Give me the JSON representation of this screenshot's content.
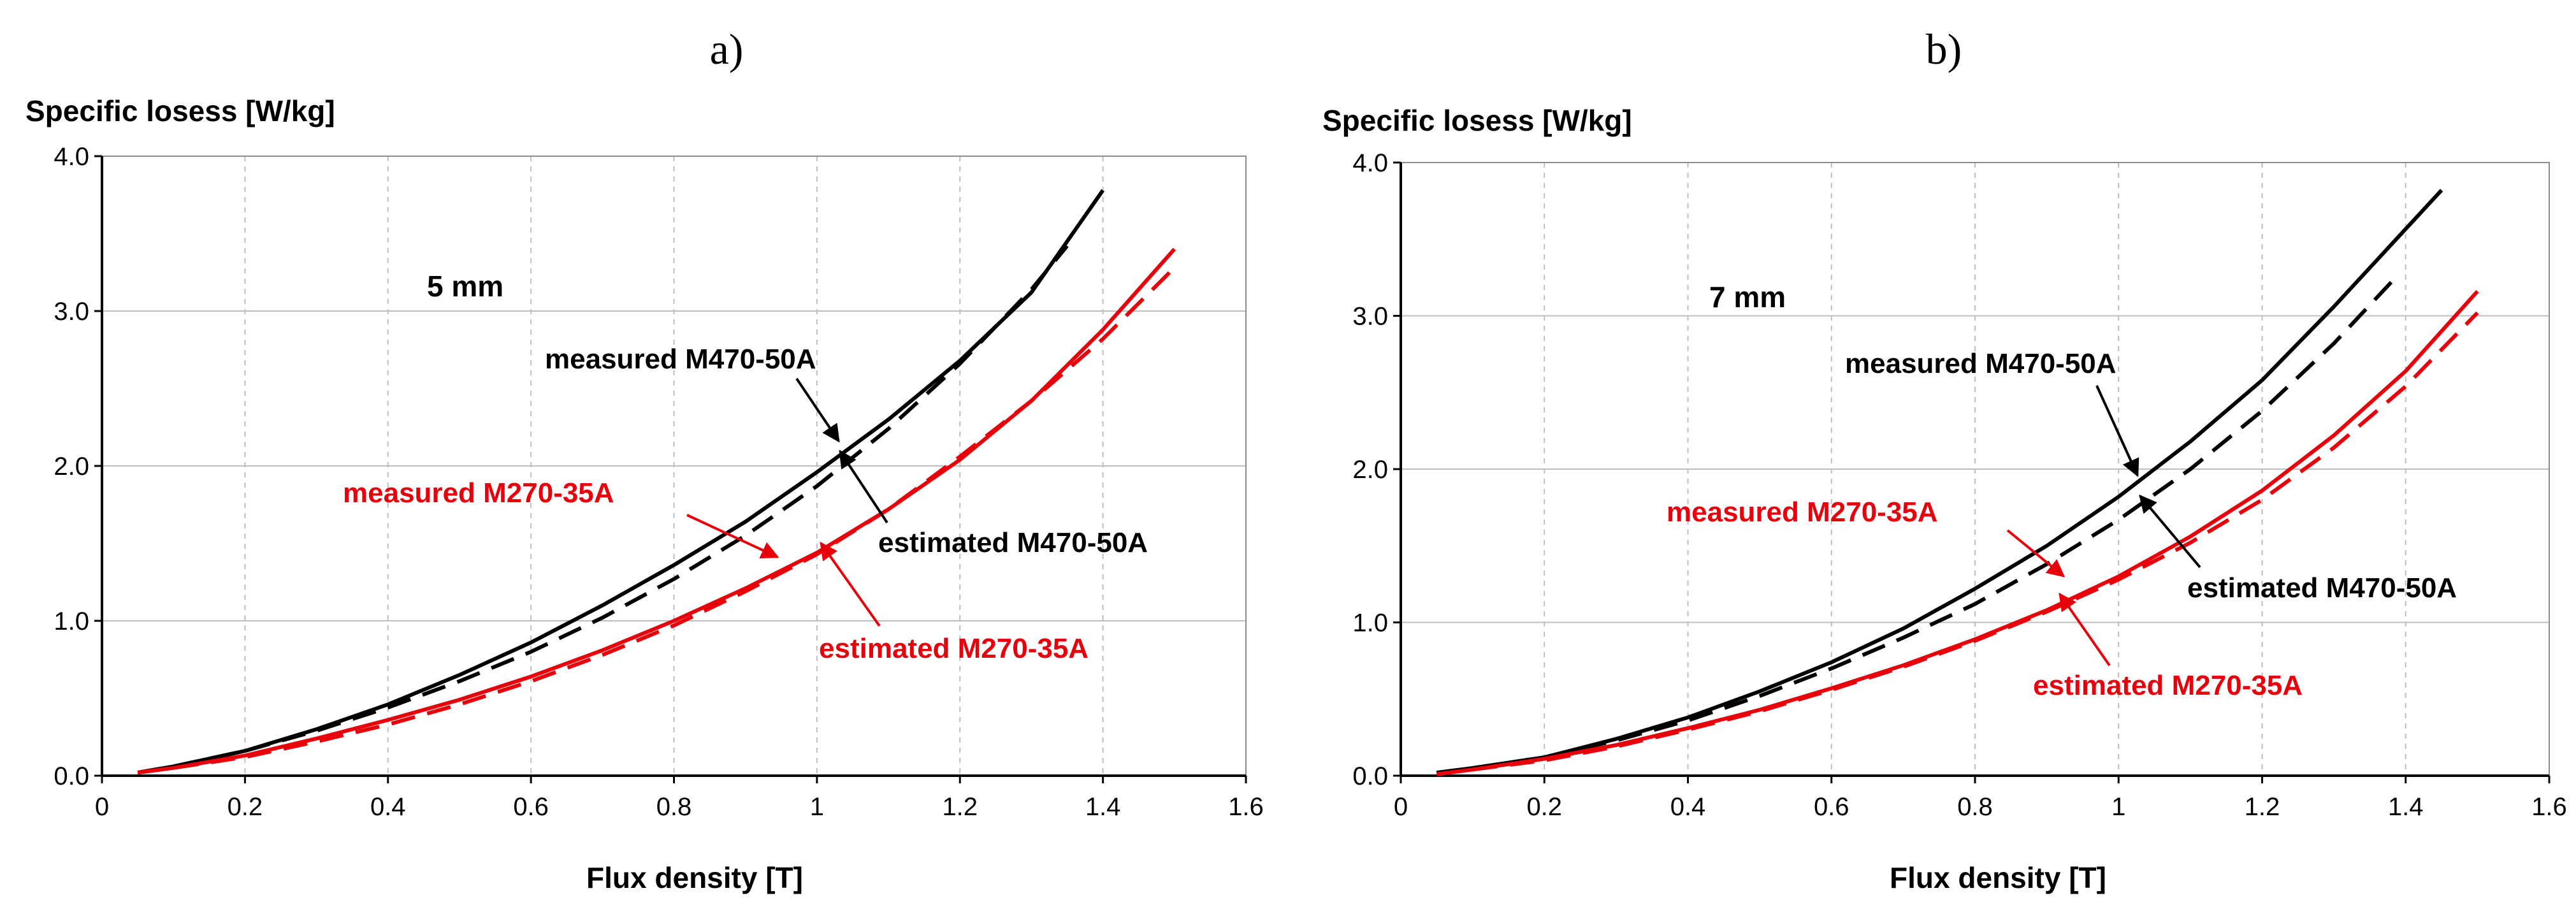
{
  "chart_data": [
    {
      "type": "line",
      "panel_title": "a)",
      "ylabel": "Specific losess [W/kg]",
      "xlabel": "Flux density [T]",
      "xlim": [
        0,
        1.6
      ],
      "ylim": [
        0,
        4.0
      ],
      "xticks": [
        0,
        0.2,
        0.4,
        0.6,
        0.8,
        1,
        1.2,
        1.4,
        1.6
      ],
      "xtick_labels": [
        "0",
        "0.2",
        "0.4",
        "0.6",
        "0.8",
        "1",
        "1.2",
        "1.4",
        "1.6"
      ],
      "yticks": [
        0,
        1,
        2,
        3,
        4
      ],
      "ytick_labels": [
        "0.0",
        "1.0",
        "2.0",
        "3.0",
        "4.0"
      ],
      "grid": "vertical dashed + horizontal solid",
      "thickness_label": "5 mm",
      "series": [
        {
          "name": "measured M470-50A",
          "color": "#000000",
          "dash": "solid",
          "x": [
            0.05,
            0.1,
            0.2,
            0.3,
            0.4,
            0.5,
            0.6,
            0.7,
            0.8,
            0.9,
            1.0,
            1.1,
            1.2,
            1.3,
            1.4
          ],
          "y": [
            0.02,
            0.06,
            0.16,
            0.3,
            0.46,
            0.65,
            0.86,
            1.1,
            1.36,
            1.64,
            1.96,
            2.3,
            2.68,
            3.12,
            3.78
          ]
        },
        {
          "name": "estimated M470-50A",
          "color": "#000000",
          "dash": "dashed",
          "x": [
            0.05,
            0.1,
            0.2,
            0.3,
            0.4,
            0.5,
            0.6,
            0.7,
            0.8,
            0.9,
            1.0,
            1.1,
            1.2,
            1.3,
            1.35
          ],
          "y": [
            0.02,
            0.06,
            0.16,
            0.29,
            0.44,
            0.61,
            0.8,
            1.02,
            1.27,
            1.55,
            1.87,
            2.24,
            2.66,
            3.14,
            3.42
          ]
        },
        {
          "name": "measured M270-35A",
          "color": "#e8000b",
          "dash": "solid",
          "x": [
            0.05,
            0.1,
            0.2,
            0.3,
            0.4,
            0.5,
            0.6,
            0.7,
            0.8,
            0.9,
            1.0,
            1.1,
            1.2,
            1.3,
            1.4,
            1.5
          ],
          "y": [
            0.02,
            0.05,
            0.13,
            0.24,
            0.36,
            0.49,
            0.64,
            0.81,
            1.0,
            1.21,
            1.44,
            1.72,
            2.04,
            2.42,
            2.88,
            3.4
          ]
        },
        {
          "name": "estimated M270-35A",
          "color": "#e8000b",
          "dash": "dashed",
          "x": [
            0.05,
            0.1,
            0.2,
            0.3,
            0.4,
            0.5,
            0.6,
            0.7,
            0.8,
            0.9,
            1.0,
            1.1,
            1.2,
            1.3,
            1.4,
            1.5
          ],
          "y": [
            0.02,
            0.05,
            0.12,
            0.22,
            0.33,
            0.46,
            0.61,
            0.78,
            0.97,
            1.19,
            1.43,
            1.72,
            2.06,
            2.42,
            2.82,
            3.28
          ]
        }
      ],
      "annotations": [
        {
          "text": "measured M470-50A",
          "color": "#000000"
        },
        {
          "text": "estimated M470-50A",
          "color": "#000000"
        },
        {
          "text": "measured M270-35A",
          "color": "#e8000b"
        },
        {
          "text": "estimated M270-35A",
          "color": "#e8000b"
        }
      ]
    },
    {
      "type": "line",
      "panel_title": "b)",
      "ylabel": "Specific losess [W/kg]",
      "xlabel": "Flux density [T]",
      "xlim": [
        0,
        1.6
      ],
      "ylim": [
        0,
        4.0
      ],
      "xticks": [
        0,
        0.2,
        0.4,
        0.6,
        0.8,
        1,
        1.2,
        1.4,
        1.6
      ],
      "xtick_labels": [
        "0",
        "0.2",
        "0.4",
        "0.6",
        "0.8",
        "1",
        "1.2",
        "1.4",
        "1.6"
      ],
      "yticks": [
        0,
        1,
        2,
        3,
        4
      ],
      "ytick_labels": [
        "0.0",
        "1.0",
        "2.0",
        "3.0",
        "4.0"
      ],
      "grid": "vertical dashed + horizontal solid",
      "thickness_label": "7 mm",
      "series": [
        {
          "name": "measured M470-50A",
          "color": "#000000",
          "dash": "solid",
          "x": [
            0.05,
            0.1,
            0.2,
            0.3,
            0.4,
            0.5,
            0.6,
            0.7,
            0.8,
            0.9,
            1.0,
            1.1,
            1.2,
            1.3,
            1.45
          ],
          "y": [
            0.02,
            0.05,
            0.12,
            0.24,
            0.38,
            0.55,
            0.74,
            0.96,
            1.22,
            1.5,
            1.82,
            2.18,
            2.58,
            3.06,
            3.82
          ]
        },
        {
          "name": "estimated M470-50A",
          "color": "#000000",
          "dash": "dashed",
          "x": [
            0.05,
            0.1,
            0.2,
            0.3,
            0.4,
            0.5,
            0.6,
            0.7,
            0.8,
            0.9,
            1.0,
            1.1,
            1.2,
            1.3,
            1.38
          ],
          "y": [
            0.02,
            0.05,
            0.12,
            0.23,
            0.36,
            0.52,
            0.7,
            0.9,
            1.12,
            1.38,
            1.67,
            2.0,
            2.38,
            2.82,
            3.22
          ]
        },
        {
          "name": "measured M270-35A",
          "color": "#e8000b",
          "dash": "solid",
          "x": [
            0.05,
            0.1,
            0.2,
            0.3,
            0.4,
            0.5,
            0.6,
            0.7,
            0.8,
            0.9,
            1.0,
            1.1,
            1.2,
            1.3,
            1.4,
            1.5
          ],
          "y": [
            0.01,
            0.04,
            0.11,
            0.2,
            0.31,
            0.43,
            0.57,
            0.72,
            0.89,
            1.08,
            1.3,
            1.56,
            1.86,
            2.22,
            2.64,
            3.16
          ]
        },
        {
          "name": "estimated M270-35A",
          "color": "#e8000b",
          "dash": "dashed",
          "x": [
            0.05,
            0.1,
            0.2,
            0.3,
            0.4,
            0.5,
            0.6,
            0.7,
            0.8,
            0.9,
            1.0,
            1.1,
            1.2,
            1.3,
            1.4,
            1.5
          ],
          "y": [
            0.01,
            0.04,
            0.1,
            0.19,
            0.3,
            0.42,
            0.56,
            0.71,
            0.88,
            1.07,
            1.28,
            1.52,
            1.8,
            2.14,
            2.54,
            3.02
          ]
        }
      ],
      "annotations": [
        {
          "text": "measured M470-50A",
          "color": "#000000"
        },
        {
          "text": "estimated M470-50A",
          "color": "#000000"
        },
        {
          "text": "measured M270-35A",
          "color": "#e8000b"
        },
        {
          "text": "estimated M270-35A",
          "color": "#e8000b"
        }
      ]
    }
  ]
}
